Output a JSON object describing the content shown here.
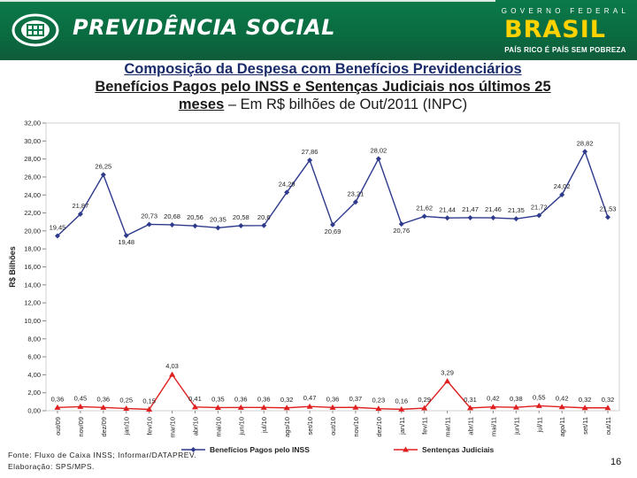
{
  "header": {
    "brand_title": "PREVIDÊNCIA SOCIAL",
    "gov_top": "GOVERNO FEDERAL",
    "gov_brasil": "BRASIL",
    "gov_slogan": "PAÍS RICO É PAÍS SEM POBREZA",
    "colors": {
      "band": "#0b7a4a",
      "brasil": "#ffd200"
    }
  },
  "title_line1": "Composição da Despesa com Benefícios Previdenciários",
  "title_line2": "Benefícios Pagos pelo INSS e Sentenças Judiciais nos últimos 25",
  "title_line3_bold": "meses",
  "title_line3_rest": " – Em R$ bilhões de Out/2011 (INPC)",
  "footer": {
    "source_line1": "Fonte: Fluxo de Caixa INSS; Informar/DATAPREV.",
    "source_line2": "Elaboração: SPS/MPS.",
    "page_number": "16"
  },
  "chart_data": {
    "type": "line",
    "ylabel": "R$ Bilhões",
    "ylim": [
      0,
      32
    ],
    "yticks": [
      "0,00",
      "2,00",
      "4,00",
      "6,00",
      "8,00",
      "10,00",
      "12,00",
      "14,00",
      "16,00",
      "18,00",
      "20,00",
      "22,00",
      "24,00",
      "26,00",
      "28,00",
      "30,00",
      "32,00"
    ],
    "categories": [
      "out/09",
      "nov/09",
      "dez/09",
      "jan/10",
      "fev/10",
      "mar/10",
      "abr/10",
      "mai/10",
      "jun/10",
      "jul/10",
      "ago/10",
      "set/10",
      "out/10",
      "nov/10",
      "dez/10",
      "jan/11",
      "fev/11",
      "mar/11",
      "abr/11",
      "mai/11",
      "jun/11",
      "jul/11",
      "ago/11",
      "set/11",
      "out/11"
    ],
    "legend_position": "bottom",
    "series": [
      {
        "name": "Benefícios Pagos pelo INSS",
        "color": "#2e3a8c",
        "marker": "diamond",
        "values": [
          19.45,
          21.87,
          26.25,
          19.48,
          20.73,
          20.68,
          20.56,
          20.35,
          20.58,
          20.6,
          24.29,
          27.86,
          20.69,
          23.21,
          28.02,
          20.76,
          21.62,
          21.44,
          21.47,
          21.46,
          21.35,
          21.72,
          24.02,
          28.82,
          21.53
        ],
        "labels": [
          "19,45",
          "21,87",
          "26,25",
          "19,48",
          "20,73",
          "20,68",
          "20,56",
          "20,35",
          "20,58",
          "20,6",
          "24,29",
          "27,86",
          "20,69",
          "23,21",
          "28,02",
          "20,76",
          "21,62",
          "21,44",
          "21,47",
          "21,46",
          "21,35",
          "21,72",
          "24,02",
          "28,82",
          "21,53"
        ]
      },
      {
        "name": "Sentenças Judiciais",
        "color": "#e02020",
        "marker": "triangle",
        "values": [
          0.36,
          0.45,
          0.36,
          0.25,
          0.15,
          4.03,
          0.41,
          0.35,
          0.36,
          0.36,
          0.32,
          0.47,
          0.36,
          0.37,
          0.23,
          0.16,
          0.29,
          3.29,
          0.31,
          0.42,
          0.38,
          0.55,
          0.42,
          0.32,
          0.32
        ],
        "labels": [
          "0,36",
          "0,45",
          "0,36",
          "0,25",
          "0,15",
          "4,03",
          "0,41",
          "0,35",
          "0,36",
          "0,36",
          "0,32",
          "0,47",
          "0,36",
          "0,37",
          "0,23",
          "0,16",
          "0,29",
          "3,29",
          "0,31",
          "0,42",
          "0,38",
          "0,55",
          "0,42",
          "0,32",
          "0,32"
        ]
      }
    ]
  }
}
